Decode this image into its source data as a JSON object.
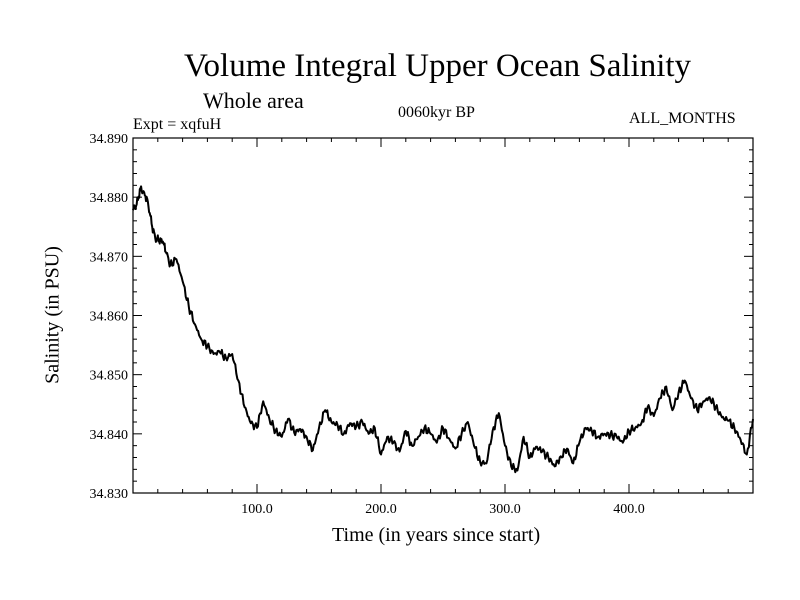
{
  "chart_data": {
    "type": "line",
    "title": "Volume Integral Upper Ocean Salinity",
    "subtitle": "Whole area",
    "experiment": "Expt = xqfuH",
    "period": "0060kyr BP",
    "months": "ALL_MONTHS",
    "xlabel": "Time (in years since start)",
    "ylabel": "Salinity (in PSU)",
    "xlim": [
      0,
      500
    ],
    "ylim": [
      34.83,
      34.89
    ],
    "x_ticks": [
      100,
      200,
      300,
      400
    ],
    "x_tick_labels": [
      "100.0",
      "200.0",
      "300.0",
      "400.0"
    ],
    "y_ticks": [
      34.83,
      34.84,
      34.85,
      34.86,
      34.87,
      34.88,
      34.89
    ],
    "y_tick_labels": [
      "34.830",
      "34.840",
      "34.850",
      "34.860",
      "34.870",
      "34.880",
      "34.890"
    ],
    "grid": false,
    "series": [
      {
        "name": "Volume Integral Upper Ocean Salinity",
        "x": [
          0,
          3,
          6,
          9,
          12,
          15,
          18,
          21,
          24,
          27,
          30,
          35,
          40,
          45,
          50,
          55,
          60,
          65,
          70,
          75,
          80,
          85,
          90,
          95,
          100,
          105,
          110,
          115,
          120,
          125,
          130,
          135,
          140,
          145,
          150,
          155,
          160,
          165,
          170,
          175,
          180,
          185,
          190,
          195,
          200,
          205,
          210,
          215,
          220,
          225,
          230,
          235,
          240,
          245,
          250,
          255,
          260,
          265,
          270,
          275,
          280,
          285,
          290,
          295,
          300,
          305,
          310,
          315,
          320,
          325,
          330,
          335,
          340,
          345,
          350,
          355,
          360,
          365,
          370,
          375,
          380,
          385,
          390,
          395,
          400,
          405,
          410,
          415,
          420,
          425,
          430,
          435,
          440,
          445,
          450,
          455,
          460,
          465,
          470,
          475,
          480,
          485,
          490,
          495,
          500
        ],
        "y": [
          34.8778,
          34.8788,
          34.8815,
          34.8808,
          34.8792,
          34.8755,
          34.873,
          34.8728,
          34.8725,
          34.8705,
          34.8685,
          34.8695,
          34.8658,
          34.8615,
          34.8585,
          34.856,
          34.8548,
          34.8535,
          34.8538,
          34.8528,
          34.8535,
          34.849,
          34.8445,
          34.8418,
          34.841,
          34.8455,
          34.8425,
          34.8405,
          34.8395,
          34.8425,
          34.8402,
          34.8408,
          34.8395,
          34.8372,
          34.841,
          34.844,
          34.842,
          34.8415,
          34.84,
          34.8418,
          34.8412,
          34.842,
          34.84,
          34.841,
          34.8365,
          34.8395,
          34.8385,
          34.837,
          34.8405,
          34.838,
          34.8395,
          34.841,
          34.84,
          34.8385,
          34.841,
          34.8392,
          34.8375,
          34.84,
          34.842,
          34.838,
          34.8352,
          34.835,
          34.8405,
          34.8435,
          34.838,
          34.8345,
          34.8338,
          34.8395,
          34.836,
          34.8378,
          34.837,
          34.836,
          34.8345,
          34.8362,
          34.8375,
          34.835,
          34.8385,
          34.841,
          34.8405,
          34.8395,
          34.84,
          34.8398,
          34.8395,
          34.8385,
          34.8405,
          34.841,
          34.8418,
          34.8445,
          34.843,
          34.846,
          34.848,
          34.844,
          34.847,
          34.849,
          34.846,
          34.844,
          34.8455,
          34.8462,
          34.8445,
          34.8428,
          34.8422,
          34.841,
          34.839,
          34.8365,
          34.8425
        ]
      }
    ]
  }
}
